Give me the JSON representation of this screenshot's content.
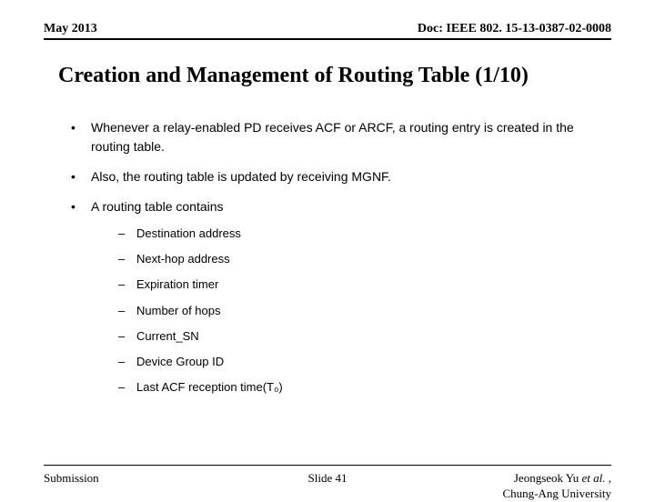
{
  "header": {
    "left": "May 2013",
    "right": "Doc: IEEE 802. 15-13-0387-02-0008"
  },
  "title": "Creation and Management of Routing Table (1/10)",
  "bullets": [
    {
      "text": "Whenever a relay-enabled PD receives ACF or ARCF, a routing entry is created in the routing table."
    },
    {
      "text": "Also, the routing table is updated by receiving MGNF."
    },
    {
      "text": "A routing table contains",
      "subs": [
        "Destination address",
        "Next-hop address",
        "Expiration timer",
        "Number of hops",
        "Current_SN",
        "Device Group ID",
        "Last ACF reception time(T₀)"
      ]
    }
  ],
  "footer": {
    "left": "Submission",
    "center": "Slide 41",
    "right_line1": "Jeongseok Yu ",
    "right_italic": "et al.",
    "right_suffix": " ,",
    "right_line2": "Chung-Ang University"
  }
}
